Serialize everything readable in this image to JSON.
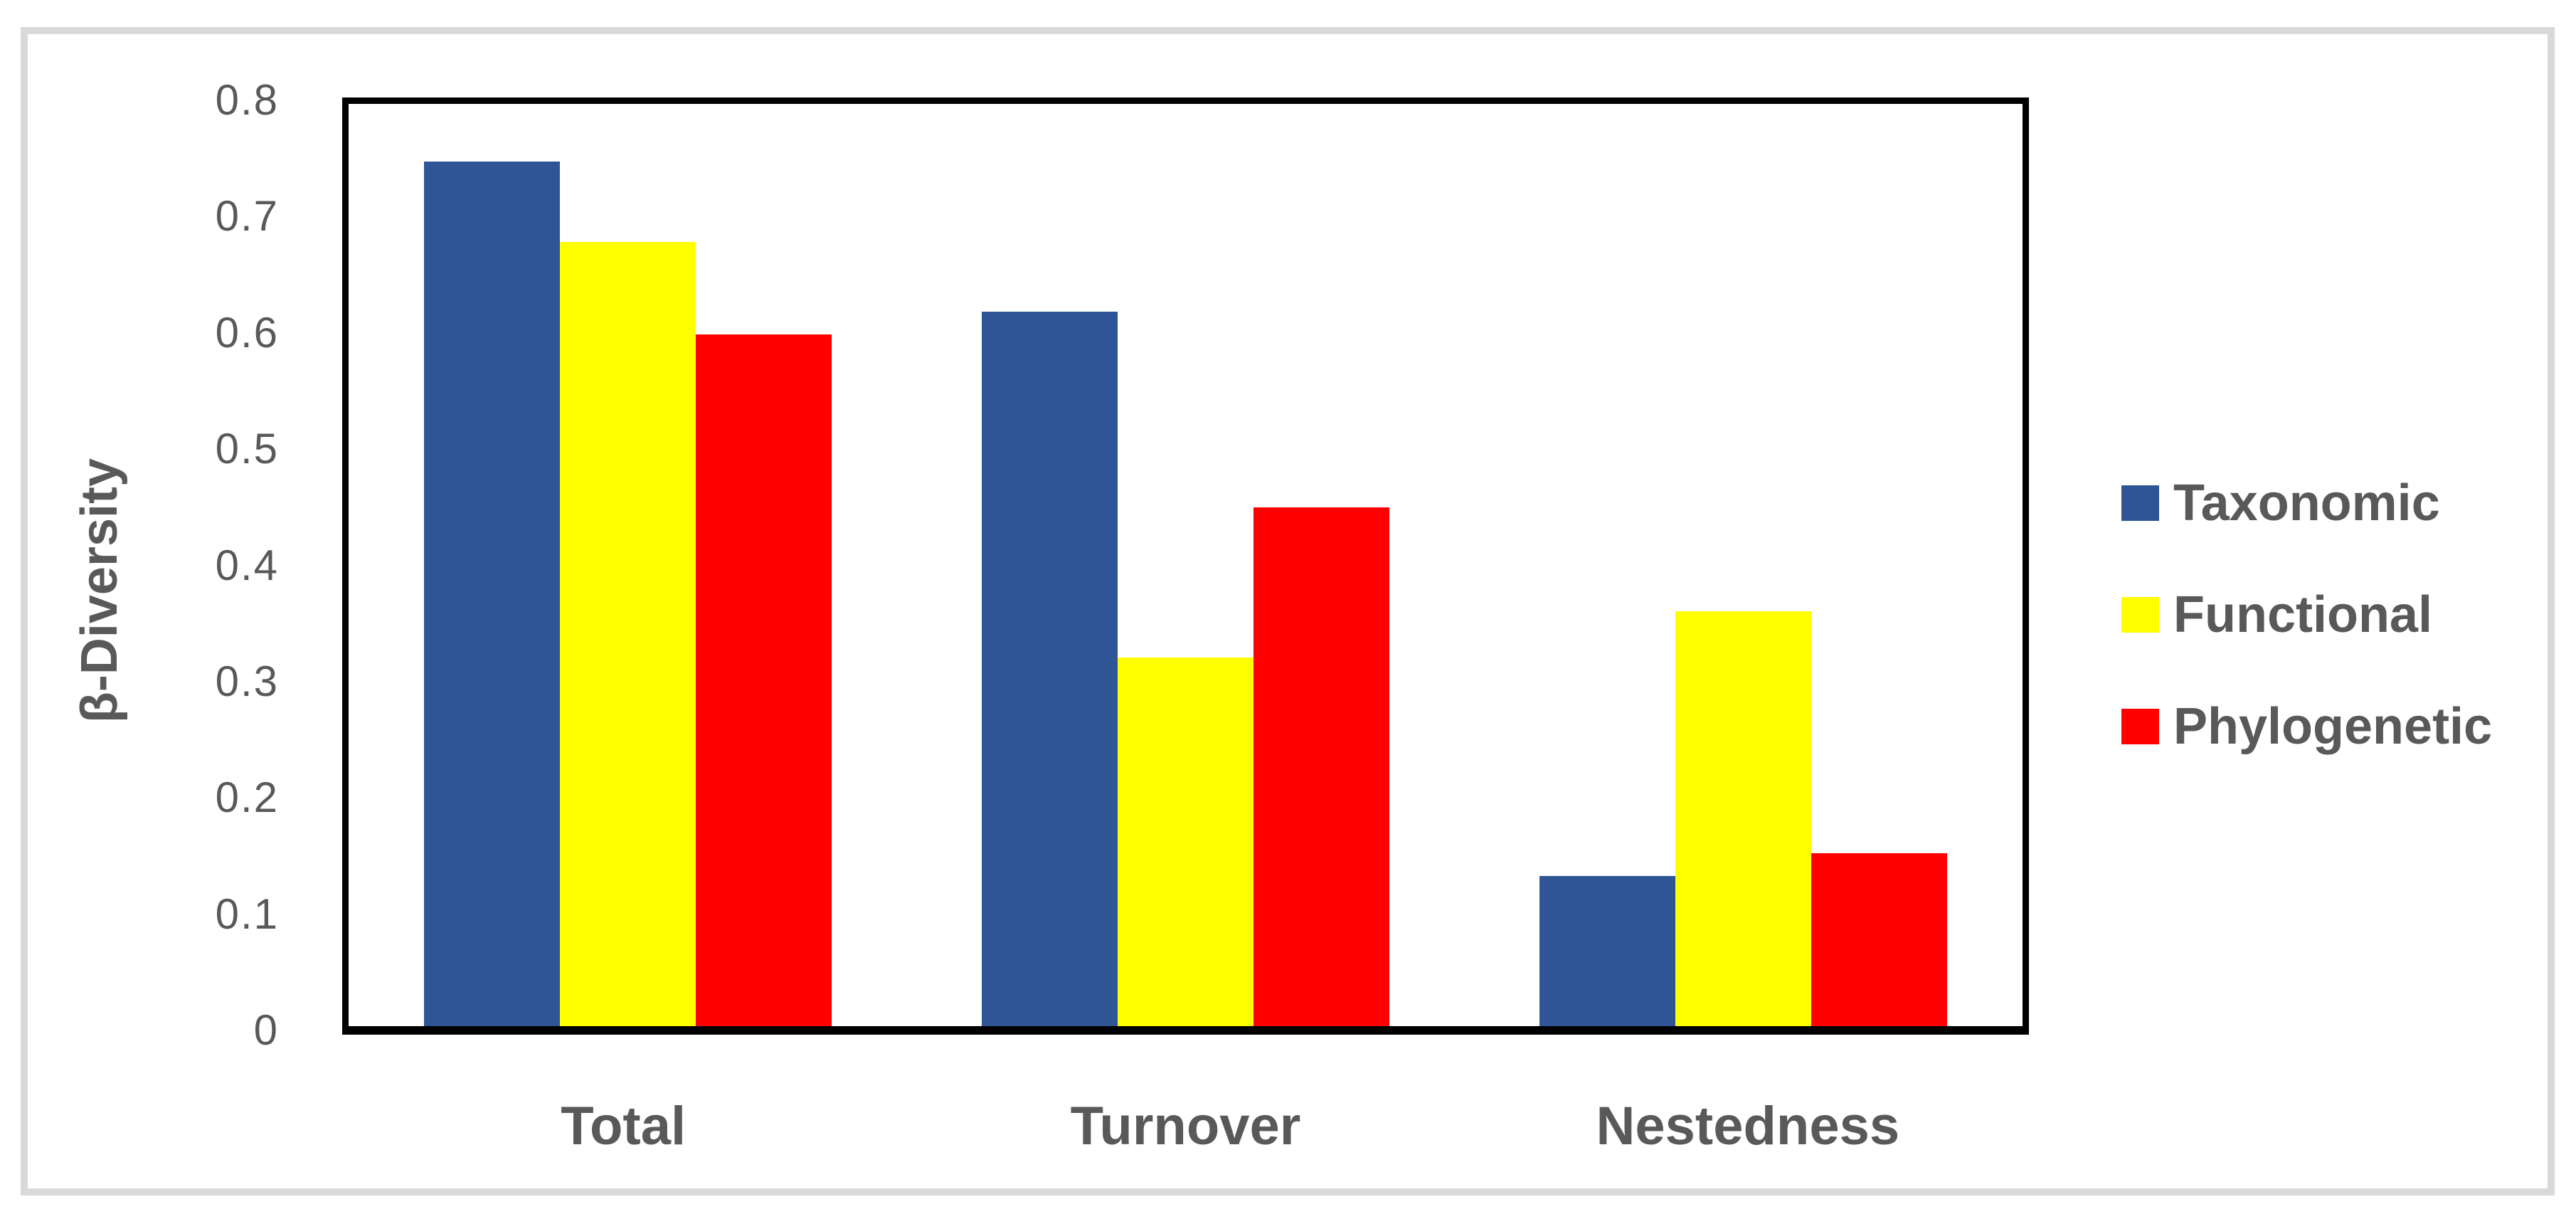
{
  "chart_data": {
    "type": "bar",
    "title": "",
    "categories": [
      "Total",
      "Turnover",
      "Nestedness"
    ],
    "series": [
      {
        "name": "Taxonomic",
        "color": "#2F5596",
        "values": [
          0.75,
          0.62,
          0.13
        ]
      },
      {
        "name": "Functional",
        "color": "#FFFF00",
        "values": [
          0.68,
          0.32,
          0.36
        ]
      },
      {
        "name": "Phylogenetic",
        "color": "#FF0000",
        "values": [
          0.6,
          0.45,
          0.15
        ]
      }
    ],
    "xlabel": "",
    "ylabel": "β-Diversity",
    "ylim": [
      0,
      0.8
    ],
    "yticks": [
      0,
      0.1,
      0.2,
      0.3,
      0.4,
      0.5,
      0.6,
      0.7,
      0.8
    ],
    "ytick_labels": [
      "0",
      "0.1",
      "0.2",
      "0.3",
      "0.4",
      "0.5",
      "0.6",
      "0.7",
      "0.8"
    ],
    "grid": false,
    "legend_position": "right",
    "bar_gap_within_group": 0
  },
  "colors": {
    "background": "#FFFFFF",
    "frame": "#D9D9D9",
    "axis": "#000000",
    "text": "#595959"
  }
}
